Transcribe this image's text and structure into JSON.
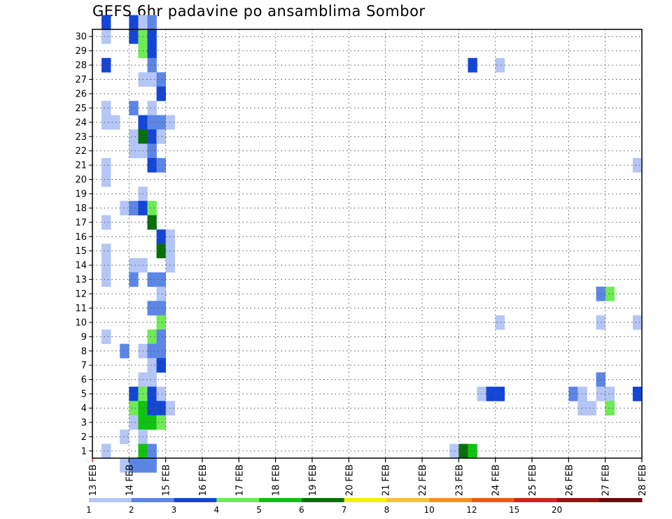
{
  "chart_data": {
    "type": "heatmap",
    "title": "GEFS 6hr padavine po ansamblima Sombor",
    "x_tick_labels": [
      "13 FEB",
      "14 FEB",
      "15 FEB",
      "16 FEB",
      "17 FEB",
      "18 FEB",
      "19 FEB",
      "20 FEB",
      "21 FEB",
      "22 FEB",
      "23 FEB",
      "24 FEB",
      "25 FEB",
      "26 FEB",
      "27 FEB",
      "28 FEB"
    ],
    "y_tick_labels": [
      "1",
      "2",
      "3",
      "4",
      "5",
      "6",
      "7",
      "8",
      "9",
      "10",
      "11",
      "12",
      "13",
      "14",
      "15",
      "16",
      "17",
      "18",
      "19",
      "20",
      "21",
      "22",
      "23",
      "24",
      "25",
      "26",
      "27",
      "28",
      "29",
      "30"
    ],
    "xlabel": "",
    "ylabel": "",
    "x_unit": "6-hour step (4 steps per day), day 0 = 13 FEB",
    "xlim": [
      0,
      60
    ],
    "ylim": [
      0,
      30
    ],
    "grid": true,
    "colorbar": {
      "levels": [
        "1",
        "2",
        "3",
        "4",
        "5",
        "6",
        "7",
        "8",
        "10",
        "12",
        "15",
        "20"
      ],
      "colors": [
        "#b4c6f5",
        "#5c86e6",
        "#1446d6",
        "#6eeb55",
        "#12c212",
        "#087008",
        "#f2f000",
        "#f5c23a",
        "#f78f1e",
        "#f05a14",
        "#d2231e",
        "#9a1414",
        "#6a0a0a"
      ],
      "placement": "bottom"
    },
    "cells": [
      {
        "x": 1,
        "y": 30,
        "c": 2
      },
      {
        "x": 4,
        "y": 30,
        "c": 2
      },
      {
        "x": 5,
        "y": 30,
        "c": 0
      },
      {
        "x": 6,
        "y": 30,
        "c": 1
      },
      {
        "x": 1,
        "y": 29,
        "c": 0
      },
      {
        "x": 4,
        "y": 29,
        "c": 2
      },
      {
        "x": 5,
        "y": 29,
        "c": 3
      },
      {
        "x": 6,
        "y": 29,
        "c": 2
      },
      {
        "x": 5,
        "y": 28,
        "c": 3
      },
      {
        "x": 6,
        "y": 28,
        "c": 2
      },
      {
        "x": 1,
        "y": 27,
        "c": 2
      },
      {
        "x": 6,
        "y": 27,
        "c": 1
      },
      {
        "x": 41,
        "y": 27,
        "c": 2
      },
      {
        "x": 44,
        "y": 27,
        "c": 0
      },
      {
        "x": 5,
        "y": 26,
        "c": 0
      },
      {
        "x": 6,
        "y": 26,
        "c": 0
      },
      {
        "x": 7,
        "y": 26,
        "c": 1
      },
      {
        "x": 7,
        "y": 25,
        "c": 2
      },
      {
        "x": 1,
        "y": 24,
        "c": 0
      },
      {
        "x": 4,
        "y": 24,
        "c": 1
      },
      {
        "x": 6,
        "y": 24,
        "c": 0
      },
      {
        "x": 1,
        "y": 23,
        "c": 0
      },
      {
        "x": 2,
        "y": 23,
        "c": 0
      },
      {
        "x": 5,
        "y": 23,
        "c": 2
      },
      {
        "x": 6,
        "y": 23,
        "c": 1
      },
      {
        "x": 7,
        "y": 23,
        "c": 1
      },
      {
        "x": 8,
        "y": 23,
        "c": 0
      },
      {
        "x": 4,
        "y": 22,
        "c": 0
      },
      {
        "x": 5,
        "y": 22,
        "c": 5
      },
      {
        "x": 6,
        "y": 22,
        "c": 2
      },
      {
        "x": 7,
        "y": 22,
        "c": 0
      },
      {
        "x": 4,
        "y": 21,
        "c": 0
      },
      {
        "x": 5,
        "y": 21,
        "c": 0
      },
      {
        "x": 6,
        "y": 21,
        "c": 1
      },
      {
        "x": 1,
        "y": 20,
        "c": 0
      },
      {
        "x": 6,
        "y": 20,
        "c": 2
      },
      {
        "x": 7,
        "y": 20,
        "c": 1
      },
      {
        "x": 59,
        "y": 20,
        "c": 0
      },
      {
        "x": 1,
        "y": 19,
        "c": 0
      },
      {
        "x": 5,
        "y": 18,
        "c": 0
      },
      {
        "x": 3,
        "y": 17,
        "c": 0
      },
      {
        "x": 4,
        "y": 17,
        "c": 1
      },
      {
        "x": 5,
        "y": 17,
        "c": 2
      },
      {
        "x": 6,
        "y": 17,
        "c": 3
      },
      {
        "x": 1,
        "y": 16,
        "c": 0
      },
      {
        "x": 6,
        "y": 16,
        "c": 5
      },
      {
        "x": 7,
        "y": 15,
        "c": 2
      },
      {
        "x": 8,
        "y": 15,
        "c": 0
      },
      {
        "x": 1,
        "y": 14,
        "c": 0
      },
      {
        "x": 7,
        "y": 14,
        "c": 5
      },
      {
        "x": 8,
        "y": 14,
        "c": 0
      },
      {
        "x": 1,
        "y": 13,
        "c": 0
      },
      {
        "x": 4,
        "y": 13,
        "c": 0
      },
      {
        "x": 5,
        "y": 13,
        "c": 0
      },
      {
        "x": 8,
        "y": 13,
        "c": 0
      },
      {
        "x": 1,
        "y": 12,
        "c": 0
      },
      {
        "x": 4,
        "y": 12,
        "c": 1
      },
      {
        "x": 6,
        "y": 12,
        "c": 1
      },
      {
        "x": 7,
        "y": 12,
        "c": 1
      },
      {
        "x": 7,
        "y": 11,
        "c": 0
      },
      {
        "x": 55,
        "y": 11,
        "c": 1
      },
      {
        "x": 56,
        "y": 11,
        "c": 3
      },
      {
        "x": 6,
        "y": 10,
        "c": 1
      },
      {
        "x": 7,
        "y": 10,
        "c": 1
      },
      {
        "x": 7,
        "y": 9,
        "c": 3
      },
      {
        "x": 44,
        "y": 9,
        "c": 0
      },
      {
        "x": 55,
        "y": 9,
        "c": 0
      },
      {
        "x": 59,
        "y": 9,
        "c": 0
      },
      {
        "x": 1,
        "y": 8,
        "c": 0
      },
      {
        "x": 6,
        "y": 8,
        "c": 3
      },
      {
        "x": 7,
        "y": 8,
        "c": 1
      },
      {
        "x": 3,
        "y": 7,
        "c": 1
      },
      {
        "x": 5,
        "y": 7,
        "c": 0
      },
      {
        "x": 6,
        "y": 7,
        "c": 1
      },
      {
        "x": 7,
        "y": 7,
        "c": 1
      },
      {
        "x": 6,
        "y": 6,
        "c": 0
      },
      {
        "x": 7,
        "y": 6,
        "c": 2
      },
      {
        "x": 5,
        "y": 5,
        "c": 0
      },
      {
        "x": 6,
        "y": 5,
        "c": 0
      },
      {
        "x": 55,
        "y": 5,
        "c": 1
      },
      {
        "x": 4,
        "y": 4,
        "c": 2
      },
      {
        "x": 5,
        "y": 4,
        "c": 3
      },
      {
        "x": 6,
        "y": 4,
        "c": 2
      },
      {
        "x": 7,
        "y": 4,
        "c": 0
      },
      {
        "x": 42,
        "y": 4,
        "c": 0
      },
      {
        "x": 43,
        "y": 4,
        "c": 2
      },
      {
        "x": 44,
        "y": 4,
        "c": 2
      },
      {
        "x": 52,
        "y": 4,
        "c": 1
      },
      {
        "x": 53,
        "y": 4,
        "c": 0
      },
      {
        "x": 55,
        "y": 4,
        "c": 0
      },
      {
        "x": 56,
        "y": 4,
        "c": 0
      },
      {
        "x": 59,
        "y": 4,
        "c": 2
      },
      {
        "x": 4,
        "y": 3,
        "c": 3
      },
      {
        "x": 5,
        "y": 3,
        "c": 4
      },
      {
        "x": 6,
        "y": 3,
        "c": 2
      },
      {
        "x": 7,
        "y": 3,
        "c": 2
      },
      {
        "x": 8,
        "y": 3,
        "c": 0
      },
      {
        "x": 53,
        "y": 3,
        "c": 0
      },
      {
        "x": 54,
        "y": 3,
        "c": 0
      },
      {
        "x": 56,
        "y": 3,
        "c": 3
      },
      {
        "x": 4,
        "y": 2,
        "c": 0
      },
      {
        "x": 5,
        "y": 2,
        "c": 4
      },
      {
        "x": 6,
        "y": 2,
        "c": 4
      },
      {
        "x": 7,
        "y": 2,
        "c": 3
      },
      {
        "x": 3,
        "y": 1,
        "c": 0
      },
      {
        "x": 5,
        "y": 1,
        "c": 0
      },
      {
        "x": 1,
        "y": 0,
        "c": 0
      },
      {
        "x": 5,
        "y": 0,
        "c": 4
      },
      {
        "x": 6,
        "y": 0,
        "c": 1
      },
      {
        "x": 39,
        "y": 0,
        "c": 0
      },
      {
        "x": 40,
        "y": 0,
        "c": 5
      },
      {
        "x": 41,
        "y": 0,
        "c": 4
      },
      {
        "x": 3,
        "y": -1,
        "c": 0
      },
      {
        "x": 4,
        "y": -1,
        "c": 1
      },
      {
        "x": 5,
        "y": -1,
        "c": 1
      },
      {
        "x": 6,
        "y": -1,
        "c": 1
      }
    ]
  }
}
